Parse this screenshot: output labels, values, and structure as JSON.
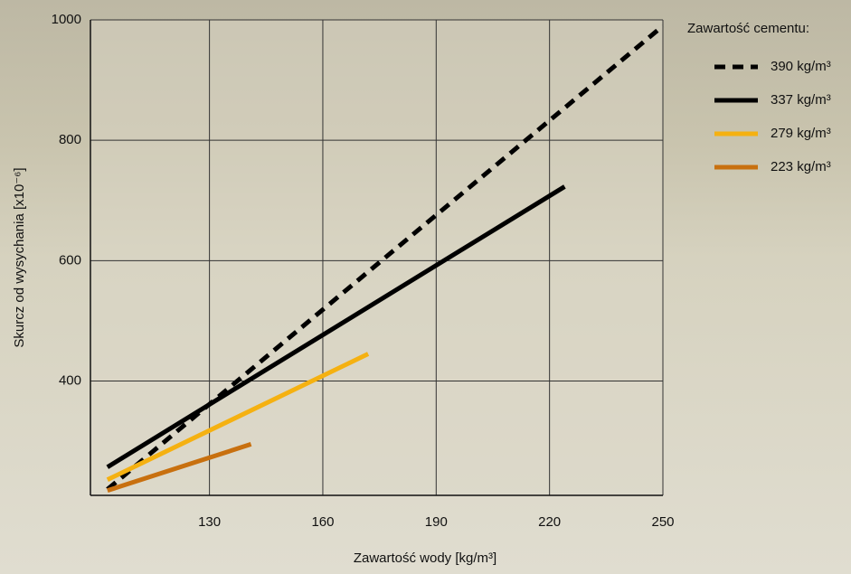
{
  "chart_data": {
    "type": "line",
    "x_label": "Zawartość wody [kg/m³]",
    "y_label": "Skurcz od wysychania [x10⁻⁶]",
    "legend_title": "Zawartość cementu:",
    "legend": "right",
    "grid": true,
    "xlim": [
      98.5,
      250
    ],
    "xticks": [
      130,
      160,
      190,
      220,
      250
    ],
    "ylim": [
      210,
      1000
    ],
    "yticks": [
      400,
      600,
      800,
      1000
    ],
    "series": [
      {
        "name": "390 kg/m³",
        "color": "#000000",
        "dash": true,
        "x": [
          103,
          250
        ],
        "values": [
          220,
          990
        ]
      },
      {
        "name": "337 kg/m³",
        "color": "#000000",
        "dash": false,
        "x": [
          103,
          224
        ],
        "values": [
          257,
          723
        ]
      },
      {
        "name": "279 kg/m³",
        "color": "#f5b111",
        "dash": false,
        "x": [
          103,
          172
        ],
        "values": [
          236,
          445
        ]
      },
      {
        "name": "223 kg/m³",
        "color": "#c8700f",
        "dash": false,
        "x": [
          103,
          141
        ],
        "values": [
          218,
          295
        ]
      }
    ]
  }
}
